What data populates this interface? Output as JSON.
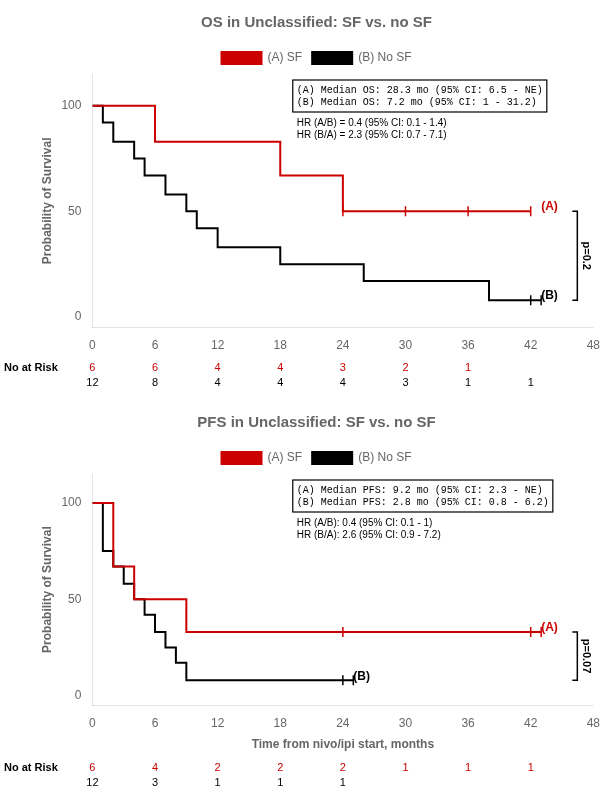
{
  "chart_data": [
    {
      "type": "step",
      "title": "OS in Unclassified: SF vs. no SF",
      "ylabel": "Probability of Survival",
      "xlim": [
        0,
        48
      ],
      "ylim": [
        -5,
        115
      ],
      "xticks": [
        0,
        6,
        12,
        18,
        24,
        30,
        36,
        42,
        48
      ],
      "yticks": [
        0,
        50,
        100
      ],
      "grid": false,
      "legend": "top",
      "series": [
        {
          "name": "(A) SF",
          "color": "#cc0000",
          "x": [
            0,
            6,
            6,
            18,
            18,
            24,
            24,
            30,
            30,
            36,
            36,
            42
          ],
          "values": [
            100,
            100,
            83,
            83,
            67,
            67,
            50,
            50,
            50,
            50,
            50,
            50
          ],
          "censor_x": [
            24,
            30,
            36,
            42
          ],
          "censor_y": [
            50,
            50,
            50,
            50
          ],
          "curve_label": "(A)",
          "curve_label_x": 43,
          "curve_label_y": 52,
          "at_risk": [
            6,
            6,
            4,
            4,
            3,
            2,
            1,
            null
          ]
        },
        {
          "name": "(B) No SF",
          "color": "#000000",
          "x": [
            0,
            1,
            1,
            2,
            2,
            4,
            4,
            5,
            5,
            7,
            7,
            9,
            9,
            10,
            10,
            12,
            12,
            18,
            18,
            24,
            24,
            26,
            26,
            36,
            36,
            38,
            38,
            42,
            42,
            43
          ],
          "values": [
            100,
            100,
            92,
            92,
            83,
            83,
            75,
            75,
            67,
            67,
            58,
            58,
            50,
            50,
            42,
            42,
            33,
            33,
            25,
            25,
            25,
            25,
            17,
            17,
            17,
            17,
            8,
            8,
            8,
            8
          ],
          "censor_x": [
            42,
            43
          ],
          "censor_y": [
            8,
            8
          ],
          "curve_label": "(B)",
          "curve_label_x": 43,
          "curve_label_y": 10,
          "at_risk": [
            12,
            8,
            4,
            4,
            4,
            3,
            1,
            1
          ]
        }
      ],
      "risk_label": "No at Risk",
      "risk_times": [
        0,
        6,
        12,
        18,
        24,
        30,
        36,
        42
      ],
      "annotation": "(A) Median OS: 28.3 mo (95% CI: 6.5 - NE)\n(B) Median OS: 7.2 mo (95% CI: 1 - 31.2)",
      "hr_text": "HR (A/B) = 0.4 (95% CI: 0.1 - 1.4)\nHR (B/A) = 2.3 (95% CI: 0.7 - 7.1)",
      "p_value": "p=0.2"
    },
    {
      "type": "step",
      "title": "PFS in Unclassified: SF vs. no SF",
      "xlabel": "Time from nivo/ipi start, months",
      "ylabel": "Probability of Survival",
      "xlim": [
        0,
        48
      ],
      "ylim": [
        -5,
        115
      ],
      "xticks": [
        0,
        6,
        12,
        18,
        24,
        30,
        36,
        42,
        48
      ],
      "yticks": [
        0,
        50,
        100
      ],
      "grid": false,
      "legend": "top",
      "series": [
        {
          "name": "(A) SF",
          "color": "#cc0000",
          "x": [
            0,
            2,
            2,
            4,
            4,
            9,
            9,
            42,
            42,
            43
          ],
          "values": [
            100,
            100,
            67,
            67,
            50,
            50,
            33,
            33,
            33,
            33
          ],
          "censor_x": [
            24,
            42,
            43
          ],
          "censor_y": [
            33,
            33,
            33
          ],
          "curve_label": "(A)",
          "curve_label_x": 43,
          "curve_label_y": 35,
          "at_risk": [
            6,
            4,
            2,
            2,
            2,
            1,
            1,
            1
          ]
        },
        {
          "name": "(B) No SF",
          "color": "#000000",
          "x": [
            0,
            1,
            1,
            2,
            2,
            3,
            3,
            4,
            4,
            5,
            5,
            6,
            6,
            7,
            7,
            8,
            8,
            9,
            9,
            10,
            10,
            11,
            11,
            12,
            12,
            24,
            24,
            25
          ],
          "values": [
            100,
            100,
            75,
            75,
            67,
            67,
            58,
            58,
            50,
            50,
            42,
            42,
            33,
            33,
            25,
            25,
            17,
            17,
            8,
            8,
            8,
            8,
            8,
            8,
            8,
            8,
            8,
            8
          ],
          "censor_x": [
            24,
            25
          ],
          "censor_y": [
            8,
            8
          ],
          "curve_label": "(B)",
          "curve_label_x": 25,
          "curve_label_y": 10,
          "at_risk": [
            12,
            3,
            1,
            1,
            1,
            null,
            null,
            null
          ]
        }
      ],
      "risk_label": "No at Risk",
      "risk_times": [
        0,
        6,
        12,
        18,
        24,
        30,
        36,
        42
      ],
      "annotation": "(A) Median PFS: 9.2 mo (95% CI: 2.3 - NE)\n(B) Median PFS: 2.8 mo (95% CI: 0.8 - 6.2)",
      "hr_text": "HR (A/B): 0.4 (95% CI: 0.1 - 1)\nHR (B/A): 2.6 (95% CI: 0.9 - 7.2)",
      "p_value": "p=0.07"
    }
  ]
}
